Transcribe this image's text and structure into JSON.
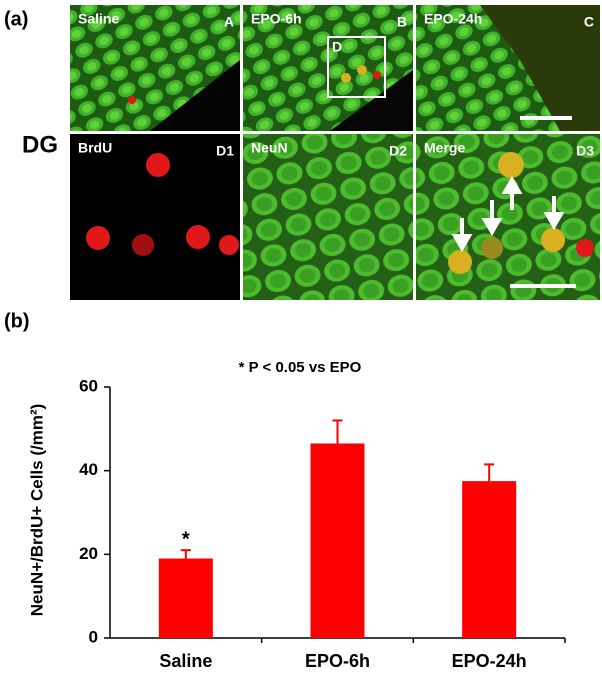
{
  "figure": {
    "label_a": "(a)",
    "region": "DG",
    "label_b": "(b)",
    "box_label": "D",
    "panels": [
      {
        "title": "Saline",
        "letter": "A"
      },
      {
        "title": "EPO-6h",
        "letter": "B"
      },
      {
        "title": "EPO-24h",
        "letter": "C"
      },
      {
        "title": "BrdU",
        "letter": "D1"
      },
      {
        "title": "NeuN",
        "letter": "D2"
      },
      {
        "title": "Merge",
        "letter": "D3"
      }
    ]
  },
  "chart_data": {
    "type": "bar",
    "y_label": "NeuN+/BrdU+ Cells (/mm²)",
    "annotation": "* P < 0.05 vs EPO",
    "categories": [
      "Saline",
      "EPO-6h",
      "EPO-24h"
    ],
    "values": [
      19,
      46.5,
      37.5
    ],
    "errors": [
      2,
      5.5,
      4
    ],
    "significance": [
      "*",
      null,
      null
    ],
    "color": "#ff0000",
    "ylim": [
      0,
      60
    ],
    "yticks": [
      0,
      20,
      40,
      60
    ]
  }
}
